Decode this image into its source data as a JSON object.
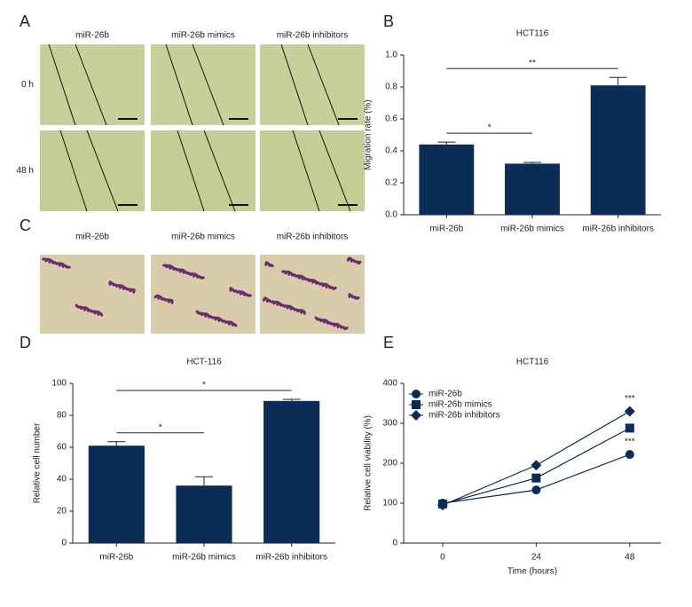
{
  "figure_panels": [
    {
      "letter": "A",
      "columns": [
        "miR-26b",
        "miR-26b mimics",
        "miR-26b inhibitors"
      ],
      "rows": [
        "0 h",
        "48 h"
      ]
    },
    {
      "letter": "C",
      "columns": [
        "miR-26b",
        "miR-26b mimics",
        "miR-26b inhibitors"
      ]
    }
  ],
  "chart_data": [
    {
      "panel": "B",
      "type": "bar",
      "title": "HCT116",
      "y_label": "Migration rate (%)",
      "categories": [
        "miR-26b",
        "miR-26b mimics",
        "miR-26b inhibitors"
      ],
      "values": [
        0.44,
        0.32,
        0.81
      ],
      "errors": [
        0.015,
        0.008,
        0.05
      ],
      "color": "#0b2d55",
      "ylim": [
        0,
        1
      ],
      "yticks": [
        {
          "value": 0,
          "label": "0.0"
        },
        0.2,
        0.4,
        0.6,
        0.8,
        {
          "value": 1,
          "label": "1.0"
        }
      ],
      "annotations": [
        {
          "text": "*",
          "between": [
            "miR-26b",
            "miR-26b mimics"
          ]
        },
        {
          "text": "**",
          "between": [
            "miR-26b",
            "miR-26b inhibitors"
          ]
        }
      ]
    },
    {
      "panel": "D",
      "type": "bar",
      "title": "HCT-116",
      "y_label": "Relative cell number",
      "categories": [
        "miR-26b",
        "miR-26b mimics",
        "miR-26b inhibitors"
      ],
      "values": [
        61,
        36,
        89
      ],
      "errors": [
        2.5,
        5.5,
        1
      ],
      "color": "#0b2d55",
      "ylim": [
        0,
        100
      ],
      "yticks": [
        0,
        20,
        40,
        60,
        80,
        100
      ],
      "annotations": [
        {
          "text": "*",
          "between": [
            "miR-26b",
            "miR-26b mimics"
          ]
        },
        {
          "text": "*",
          "between": [
            "miR-26b",
            "miR-26b inhibitors"
          ]
        }
      ]
    },
    {
      "panel": "E",
      "type": "line",
      "title": "HCT116",
      "x_label": "Time (hours)",
      "y_label": "Relative cell viability (%)",
      "x": [
        0,
        24,
        48
      ],
      "series": [
        {
          "name": "miR-26b",
          "color": "#0b2d55",
          "marker": "circle",
          "values": [
            100,
            133,
            222
          ]
        },
        {
          "name": "miR-26b mimics",
          "color": "#0b2d55",
          "marker": "square",
          "values": [
            98,
            163,
            288
          ]
        },
        {
          "name": "miR-26b inhibitors",
          "color": "#0b2d55",
          "marker": "diamond",
          "values": [
            95,
            195,
            330
          ]
        }
      ],
      "xlim": [
        -10,
        56
      ],
      "xticks": [
        0,
        24,
        48
      ],
      "ylim": [
        0,
        400
      ],
      "yticks": [
        0,
        100,
        200,
        300,
        400
      ],
      "legend": "upper left",
      "annotations": [
        {
          "text": "***",
          "series": "miR-26b inhibitors",
          "x": 48
        },
        {
          "text": "***",
          "series": "miR-26b",
          "x": 48
        }
      ]
    }
  ]
}
